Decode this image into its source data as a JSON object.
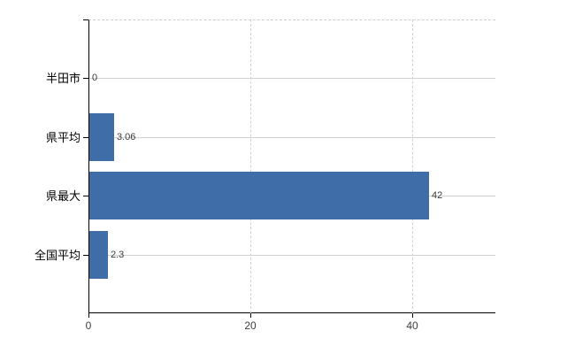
{
  "chart_data": {
    "type": "bar",
    "orientation": "horizontal",
    "title": "",
    "xlabel": "",
    "ylabel": "",
    "categories": [
      "半田市",
      "県平均",
      "県最大",
      "全国平均"
    ],
    "values": [
      0,
      3.06,
      42,
      2.3
    ],
    "value_labels": [
      "0",
      "3.06",
      "42",
      "2.3"
    ],
    "x_ticks": [
      0,
      20,
      40
    ],
    "x_tick_labels": [
      "0",
      "20",
      "40"
    ],
    "xlim": [
      0,
      50.3
    ],
    "grid": true,
    "legend": "none",
    "colors": {
      "bar": "#3e6da8",
      "grid_line": "#ccd4cc",
      "plot_border_dashed": "#c9cfc9",
      "axis": "#000000",
      "value_text": "#3a3a3a",
      "category_text": "#000000",
      "background": "#ffffff"
    }
  }
}
